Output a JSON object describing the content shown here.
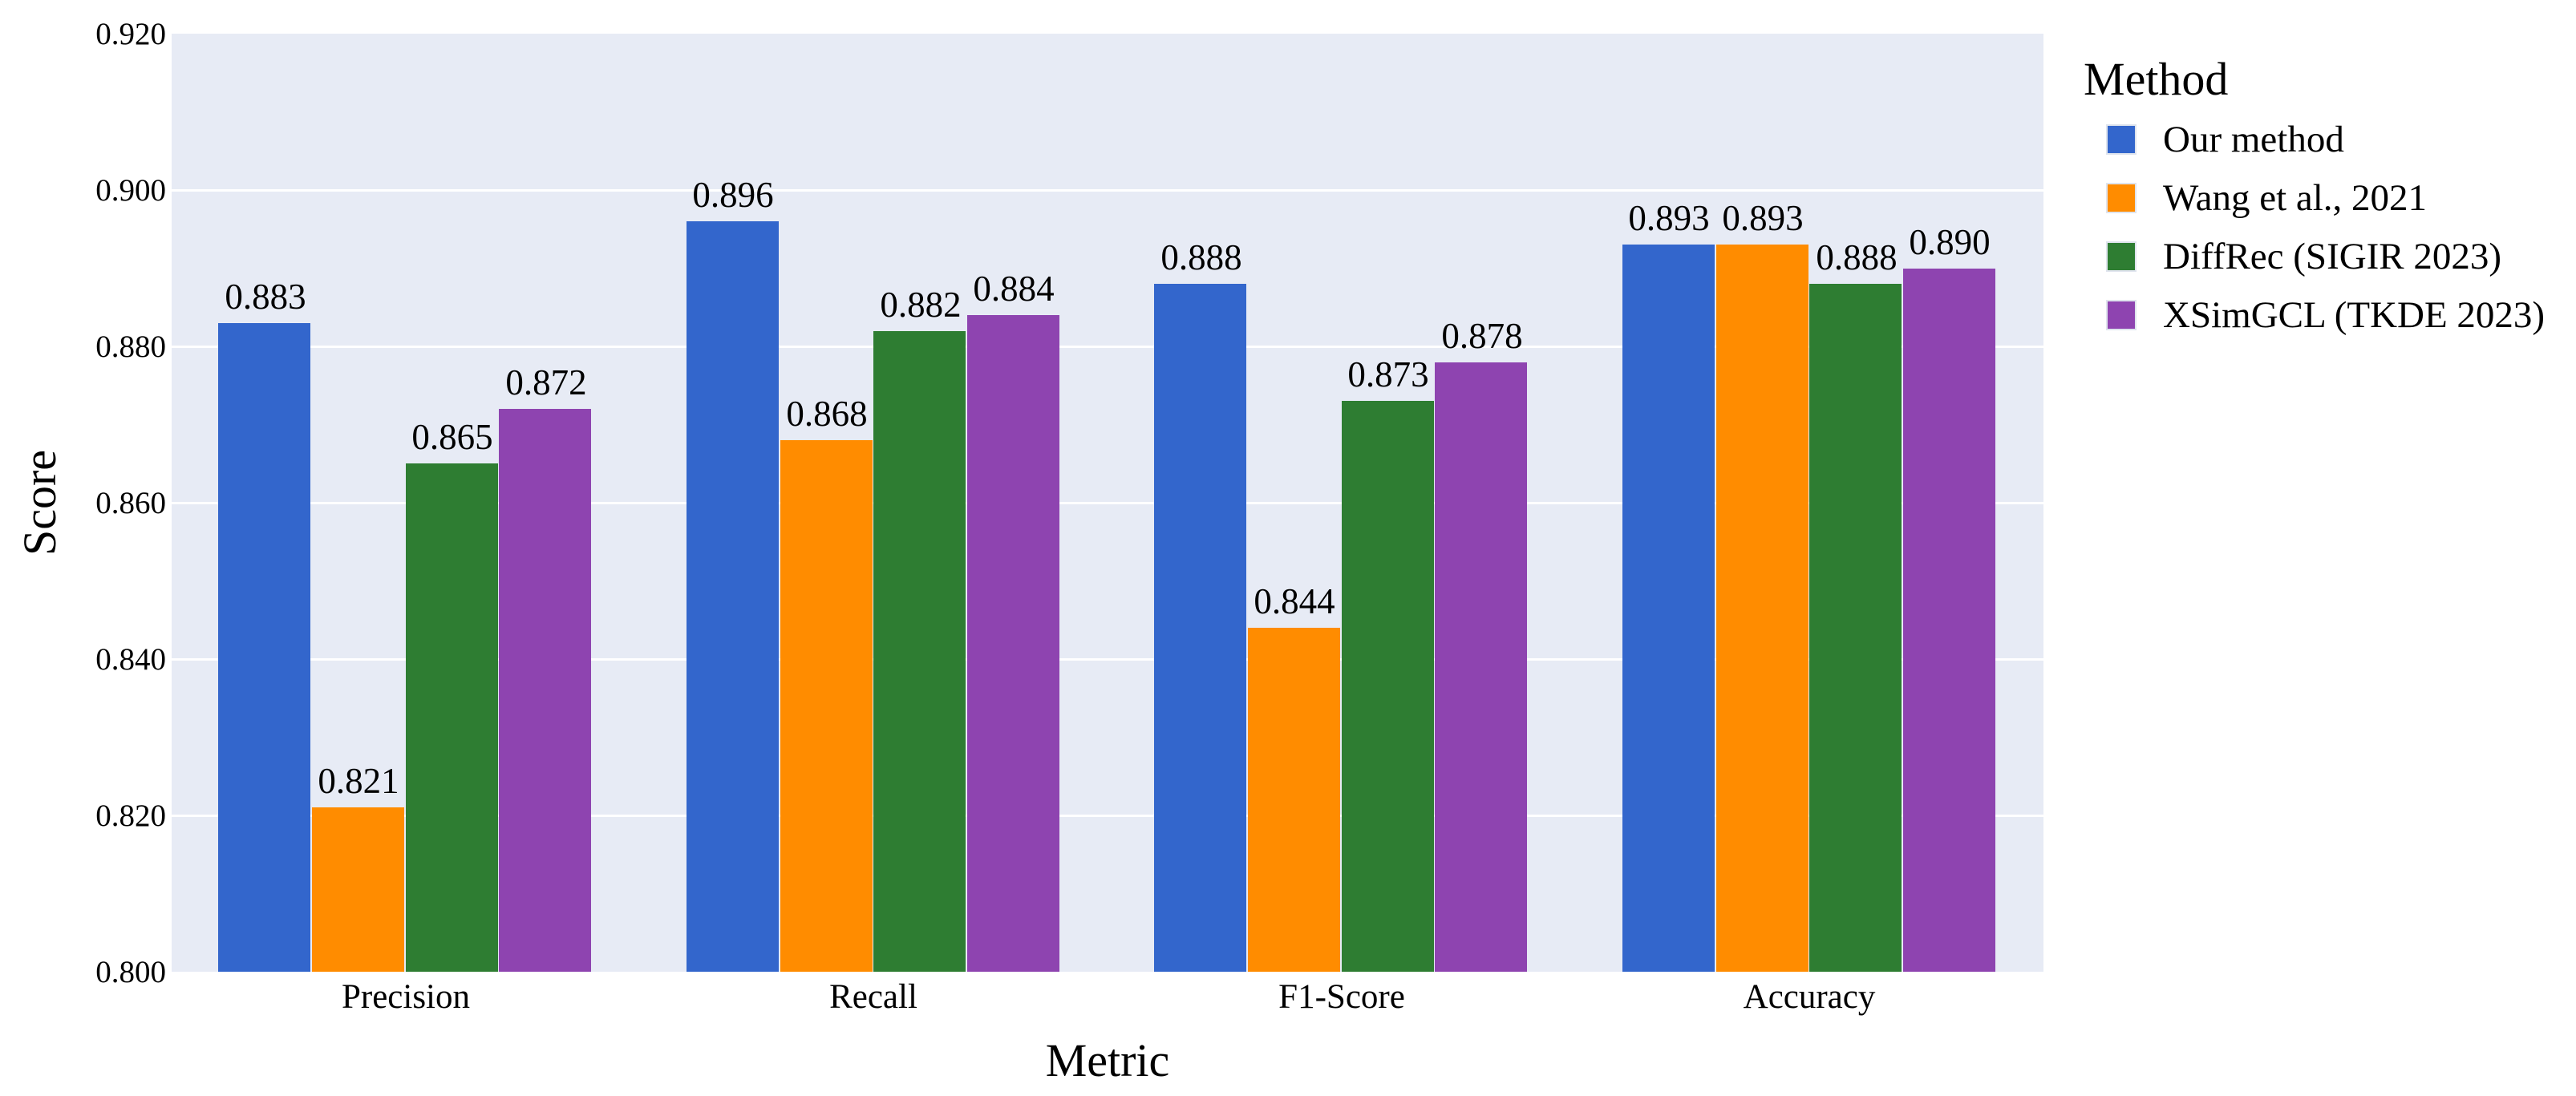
{
  "chart_data": {
    "type": "bar",
    "title": "",
    "xlabel": "Metric",
    "ylabel": "Score",
    "categories": [
      "Precision",
      "Recall",
      "F1-Score",
      "Accuracy"
    ],
    "series": [
      {
        "name": "Our method",
        "color": "#3366cc",
        "values": [
          0.883,
          0.896,
          0.888,
          0.893
        ]
      },
      {
        "name": "Wang et al., 2021",
        "color": "#ff8c00",
        "values": [
          0.821,
          0.868,
          0.844,
          0.893
        ]
      },
      {
        "name": "DiffRec (SIGIR 2023)",
        "color": "#2e7d32",
        "values": [
          0.865,
          0.882,
          0.873,
          0.888
        ]
      },
      {
        "name": "XSimGCL (TKDE 2023)",
        "color": "#8e44b0",
        "values": [
          0.872,
          0.884,
          0.878,
          0.89
        ]
      }
    ],
    "ylim": [
      0.8,
      0.92
    ],
    "ytick_labels": [
      "0.800",
      "0.820",
      "0.840",
      "0.860",
      "0.880",
      "0.900",
      "0.920"
    ],
    "bar_value_labels": {
      "Precision": [
        "0.883",
        "0.821",
        "0.865",
        "0.872"
      ],
      "Recall": [
        "0.896",
        "0.868",
        "0.882",
        "0.884"
      ],
      "F1-Score": [
        "0.888",
        "0.844",
        "0.873",
        "0.878"
      ],
      "Accuracy": [
        "0.893",
        "0.893",
        "0.888",
        "0.890"
      ]
    },
    "legend_title": "Method",
    "legend_position": "upper-right-outside",
    "grid": true,
    "axes_background": "#e7ebf5",
    "grid_color": "#ffffff",
    "text_color": "#000000"
  }
}
